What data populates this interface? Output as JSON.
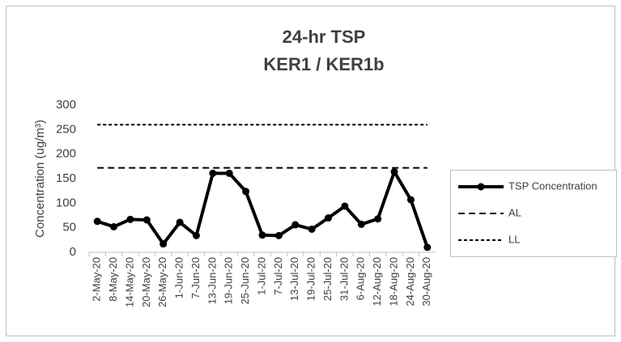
{
  "chart_data": {
    "type": "line",
    "title": "24-hr TSP",
    "subtitle": "KER1 / KER1b",
    "y_label": "Concentration (ug/m³)",
    "categories": [
      "2-May-20",
      "8-May-20",
      "14-May-20",
      "20-May-20",
      "26-May-20",
      "1-Jun-20",
      "7-Jun-20",
      "13-Jun-20",
      "19-Jun-20",
      "25-Jun-20",
      "1-Jul-20",
      "7-Jul-20",
      "13-Jul-20",
      "19-Jul-20",
      "25-Jul-20",
      "31-Jul-20",
      "6-Aug-20",
      "12-Aug-20",
      "18-Aug-20",
      "24-Aug-20",
      "30-Aug-20"
    ],
    "series": [
      {
        "name": "TSP Concentration",
        "color": "#000000",
        "dash": "solid",
        "markers": true,
        "values": [
          63,
          52,
          67,
          66,
          17,
          61,
          34,
          161,
          161,
          124,
          35,
          34,
          56,
          47,
          70,
          94,
          57,
          68,
          164,
          107,
          10
        ]
      },
      {
        "name": "AL",
        "color": "#000000",
        "dash": "dashed",
        "markers": false,
        "values": [
          172,
          172,
          172,
          172,
          172,
          172,
          172,
          172,
          172,
          172,
          172,
          172,
          172,
          172,
          172,
          172,
          172,
          172,
          172,
          172,
          172
        ]
      },
      {
        "name": "LL",
        "color": "#000000",
        "dash": "dotted",
        "markers": false,
        "values": [
          260,
          260,
          260,
          260,
          260,
          260,
          260,
          260,
          260,
          260,
          260,
          260,
          260,
          260,
          260,
          260,
          260,
          260,
          260,
          260,
          260
        ]
      }
    ],
    "ylim": [
      0,
      300
    ],
    "yticks": [
      0,
      50,
      100,
      150,
      200,
      250,
      300
    ],
    "grid": false,
    "legend": "right"
  }
}
